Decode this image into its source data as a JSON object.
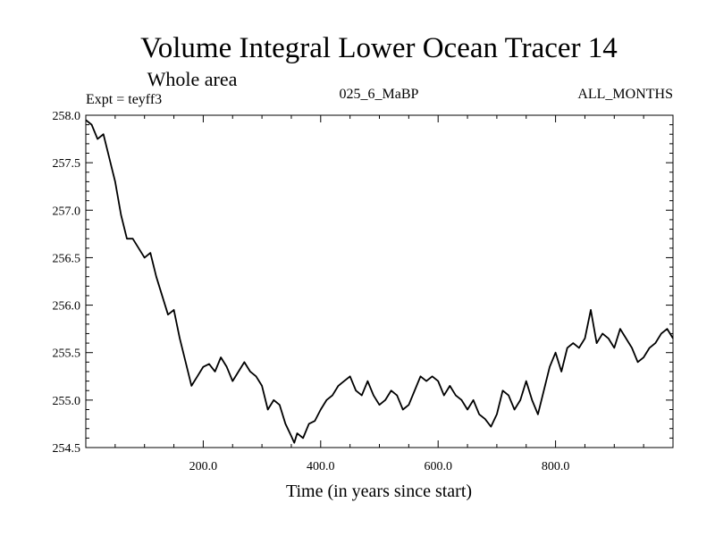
{
  "chart_data": {
    "type": "line",
    "title": "Volume Integral Lower Ocean Tracer 14",
    "subtitle": "Whole area",
    "experiment_label": "Expt = teyff3",
    "period_label": "025_6_MaBP",
    "months_label": "ALL_MONTHS",
    "xlabel": "Time (in years since start)",
    "ylabel": "",
    "xlim": [
      0,
      1000
    ],
    "ylim": [
      254.5,
      258.0
    ],
    "x_ticks": [
      200.0,
      400.0,
      600.0,
      800.0
    ],
    "x_tick_labels": [
      "200.0",
      "400.0",
      "600.0",
      "800.0"
    ],
    "y_ticks": [
      254.5,
      255.0,
      255.5,
      256.0,
      256.5,
      257.0,
      257.5,
      258.0
    ],
    "y_tick_labels": [
      "254.5",
      "255.0",
      "255.5",
      "256.0",
      "256.5",
      "257.0",
      "257.5",
      "258.0"
    ],
    "grid": false,
    "series": [
      {
        "name": "Lower Ocean Tracer 14",
        "color": "#000000",
        "x": [
          0,
          10,
          20,
          30,
          40,
          50,
          60,
          70,
          80,
          90,
          100,
          110,
          120,
          130,
          140,
          150,
          160,
          170,
          180,
          190,
          200,
          210,
          220,
          230,
          240,
          250,
          260,
          270,
          280,
          290,
          300,
          310,
          320,
          330,
          340,
          350,
          355,
          360,
          370,
          380,
          390,
          400,
          410,
          420,
          430,
          440,
          450,
          460,
          470,
          480,
          490,
          500,
          510,
          520,
          530,
          540,
          550,
          560,
          570,
          580,
          590,
          600,
          610,
          620,
          630,
          640,
          650,
          660,
          670,
          680,
          690,
          700,
          710,
          720,
          730,
          740,
          750,
          760,
          770,
          780,
          790,
          800,
          810,
          820,
          830,
          840,
          850,
          860,
          870,
          880,
          890,
          900,
          910,
          920,
          930,
          940,
          950,
          960,
          970,
          980,
          990,
          1000
        ],
        "values": [
          257.95,
          257.9,
          257.75,
          257.8,
          257.55,
          257.3,
          256.95,
          256.7,
          256.7,
          256.6,
          256.5,
          256.55,
          256.3,
          256.1,
          255.9,
          255.95,
          255.65,
          255.4,
          255.15,
          255.25,
          255.35,
          255.38,
          255.3,
          255.45,
          255.35,
          255.2,
          255.3,
          255.4,
          255.3,
          255.25,
          255.15,
          254.9,
          255.0,
          254.95,
          254.75,
          254.62,
          254.55,
          254.65,
          254.6,
          254.75,
          254.78,
          254.9,
          255.0,
          255.05,
          255.15,
          255.2,
          255.25,
          255.1,
          255.05,
          255.2,
          255.05,
          254.95,
          255.0,
          255.1,
          255.05,
          254.9,
          254.95,
          255.1,
          255.25,
          255.2,
          255.25,
          255.2,
          255.05,
          255.15,
          255.05,
          255.0,
          254.9,
          255.0,
          254.85,
          254.8,
          254.72,
          254.85,
          255.1,
          255.05,
          254.9,
          255.0,
          255.2,
          255.0,
          254.85,
          255.1,
          255.35,
          255.5,
          255.3,
          255.55,
          255.6,
          255.55,
          255.65,
          255.95,
          255.6,
          255.7,
          255.65,
          255.55,
          255.75,
          255.65,
          255.55,
          255.4,
          255.45,
          255.55,
          255.6,
          255.7,
          255.75,
          255.65
        ]
      }
    ]
  }
}
